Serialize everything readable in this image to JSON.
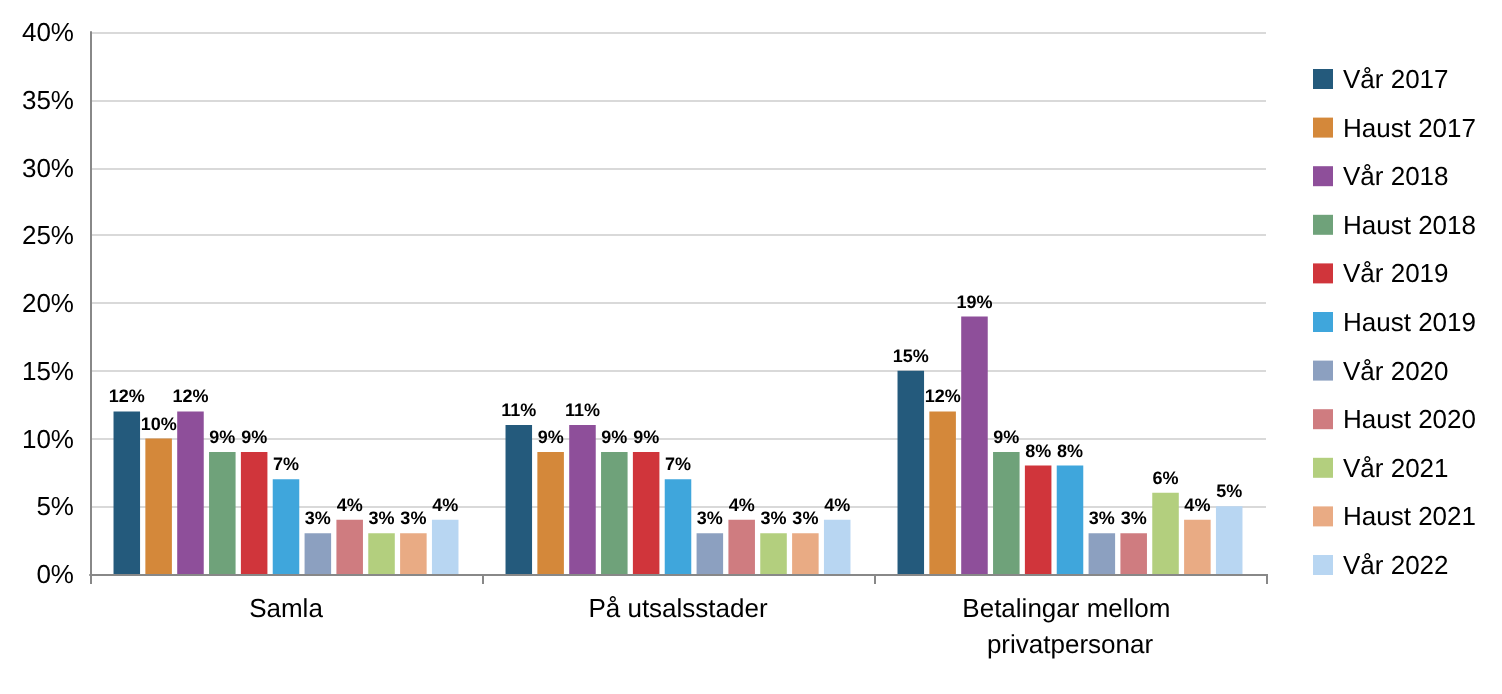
{
  "chart_data": {
    "type": "bar",
    "categories": [
      "Samla",
      "På utsalsstader",
      "Betalingar mellom privatpersonar"
    ],
    "ylim": [
      0,
      40
    ],
    "yticks": [
      {
        "value": 0,
        "label": "0%"
      },
      {
        "value": 5,
        "label": "5%"
      },
      {
        "value": 10,
        "label": "10%"
      },
      {
        "value": 15,
        "label": "15%"
      },
      {
        "value": 20,
        "label": "20%"
      },
      {
        "value": 25,
        "label": "25%"
      },
      {
        "value": 30,
        "label": "30%"
      },
      {
        "value": 35,
        "label": "35%"
      },
      {
        "value": 40,
        "label": "40%"
      }
    ],
    "grid": "y",
    "legend": "right",
    "series": [
      {
        "name": "Vår 2017",
        "color": "#245a7c",
        "values": [
          12,
          11,
          15
        ],
        "value_labels": [
          "12%",
          "11%",
          "15%"
        ]
      },
      {
        "name": "Haust 2017",
        "color": "#d4883a",
        "values": [
          10,
          9,
          12
        ],
        "value_labels": [
          "10%",
          "9%",
          "12%"
        ]
      },
      {
        "name": "Vår 2018",
        "color": "#8e4f9a",
        "values": [
          12,
          11,
          19
        ],
        "value_labels": [
          "12%",
          "11%",
          "19%"
        ]
      },
      {
        "name": "Haust 2018",
        "color": "#6fa27a",
        "values": [
          9,
          9,
          9
        ],
        "value_labels": [
          "9%",
          "9%",
          "9%"
        ]
      },
      {
        "name": "Vår 2019",
        "color": "#d0353b",
        "values": [
          9,
          9,
          8
        ],
        "value_labels": [
          "9%",
          "9%",
          "8%"
        ]
      },
      {
        "name": "Haust 2019",
        "color": "#3fa6dc",
        "values": [
          7,
          7,
          8
        ],
        "value_labels": [
          "7%",
          "7%",
          "8%"
        ]
      },
      {
        "name": "Vår 2020",
        "color": "#8ca0c0",
        "values": [
          3,
          3,
          3
        ],
        "value_labels": [
          "3%",
          "3%",
          "3%"
        ]
      },
      {
        "name": "Haust 2020",
        "color": "#cf7c80",
        "values": [
          4,
          4,
          3
        ],
        "value_labels": [
          "4%",
          "4%",
          "3%"
        ]
      },
      {
        "name": "Vår 2021",
        "color": "#b3cf7e",
        "values": [
          3,
          3,
          6
        ],
        "value_labels": [
          "3%",
          "3%",
          "6%"
        ]
      },
      {
        "name": "Haust 2021",
        "color": "#e9ab84",
        "values": [
          3,
          3,
          4
        ],
        "value_labels": [
          "3%",
          "3%",
          "4%"
        ]
      },
      {
        "name": "Vår 2022",
        "color": "#b8d6f2",
        "values": [
          4,
          4,
          5
        ],
        "value_labels": [
          "4%",
          "4%",
          "5%"
        ]
      }
    ]
  }
}
